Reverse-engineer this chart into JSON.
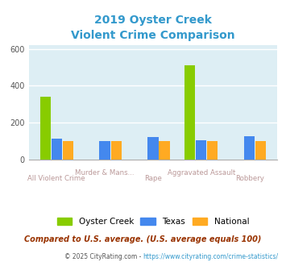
{
  "title_line1": "2019 Oyster Creek",
  "title_line2": "Violent Crime Comparison",
  "title_color": "#3399cc",
  "categories": [
    "All Violent Crime",
    "Murder & Mans...",
    "Rape",
    "Aggravated Assault",
    "Robbery"
  ],
  "oyster_creek": [
    340,
    0,
    0,
    510,
    0
  ],
  "texas": [
    112,
    100,
    122,
    105,
    128
  ],
  "national": [
    100,
    100,
    100,
    100,
    100
  ],
  "bar_color_oyster": "#88cc00",
  "bar_color_texas": "#4488ee",
  "bar_color_national": "#ffaa22",
  "ylim": [
    0,
    620
  ],
  "yticks": [
    0,
    200,
    400,
    600
  ],
  "plot_bg": "#ddeef4",
  "grid_color": "#ffffff",
  "footnote1": "Compared to U.S. average. (U.S. average equals 100)",
  "footnote2": "© 2025 CityRating.com - https://www.cityrating.com/crime-statistics/",
  "footnote1_color": "#993300",
  "footnote2_color": "#3399cc",
  "footnote2_prefix_color": "#555555",
  "legend_labels": [
    "Oyster Creek",
    "Texas",
    "National"
  ],
  "xlabel_color": "#bb9999",
  "bar_width": 0.22
}
